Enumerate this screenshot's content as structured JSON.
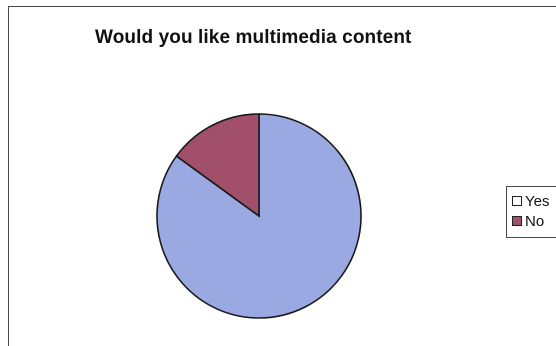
{
  "chart_data": {
    "type": "pie",
    "title": "Would you like multimedia content",
    "categories": [
      "Yes",
      "No"
    ],
    "values": [
      85,
      15
    ],
    "colors": [
      "#9ba9e3",
      "#a14f6b"
    ],
    "legend": {
      "position": "right",
      "items": [
        {
          "label": "Yes",
          "color": "#ffffff"
        },
        {
          "label": "No",
          "color": "#a14f6b"
        }
      ]
    }
  }
}
